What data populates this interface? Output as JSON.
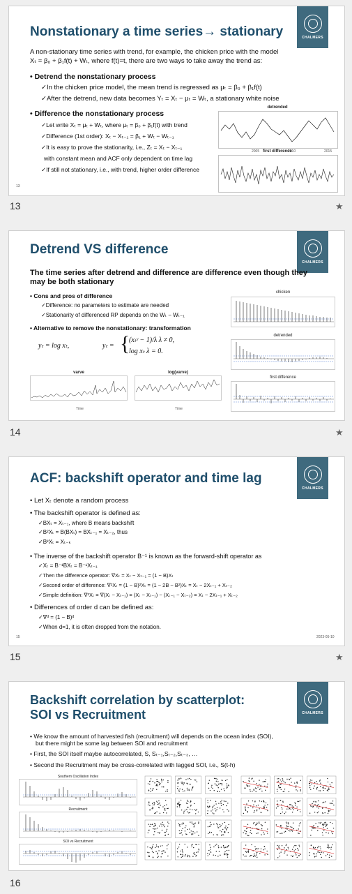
{
  "slides": [
    {
      "number": "13",
      "logo_text": "CHALMERS",
      "title": "Nonstationary a time series→ stationary",
      "intro_line1": "A non-stationary time series with trend, for example, the chicken price with the model",
      "intro_line2": "Xₜ = β₀ + β₁f(t) + Wₜ, where f(t)=t, there are two ways to take away the trend as:",
      "bullet1": "• Detrend the nonstationary process",
      "b1_sub1": "✓In the chicken price model, the mean trend is regressed as μₜ = β₀ + β₁f(t)",
      "b1_sub2": "✓After the detrend, new data becomes Yₜ = Xₜ − μₜ = Wₜ, a stationary white noise",
      "bullet2": "• Difference the nonstationary process",
      "b2_sub1": "✓Let write Xₜ = μₜ + Wₜ, where μₜ = β₀ + β₁f(t) with trend",
      "b2_sub2": "✓Difference (1st order): Xₜ − Xₜ₋₁ = β₁ + Wₜ − Wₜ₋₁",
      "b2_sub3": "✓It is easy to prove the stationarity, i.e., Zₜ = Xₜ − Xₜ₋₁",
      "b2_sub4": "with constant mean and ACF only dependent on time lag",
      "b2_sub5": "✓If still not stationary, i.e., with trend, higher order difference",
      "footer_num": "13",
      "fig_top_title": "detrended",
      "fig_bottom_title": "first difference",
      "fig_xticks": [
        "2005",
        "2010",
        "2015"
      ]
    },
    {
      "number": "14",
      "logo_text": "CHALMERS",
      "title": "Detrend VS difference",
      "subtitle": "The time series after detrend and difference are difference even though they may be both stationary",
      "bullet1": "• Cons and pros of difference",
      "b1_sub1": "✓Difference: no parameters to estimate are needed",
      "b1_sub2": "✓Stationarity of differenced RP depends on the Wₜ − Wₜ₋₁",
      "bullet2": "• Alternative to remove the nonstationary: transformation",
      "formula_log": "yₜ = log xₜ,",
      "formula_bc_lhs": "yₜ =",
      "formula_bc_case1": "(xₜᵞ − 1)/λ    λ ≠ 0,",
      "formula_bc_case2": "log xₜ            λ = 0.",
      "plot_left_title": "varve",
      "plot_right_title": "log(varve)",
      "acf_titles": [
        "chicken",
        "detrended",
        "first difference"
      ],
      "time_label": "Time",
      "xticks": [
        "0",
        "100",
        "200",
        "300",
        "400",
        "500",
        "600"
      ]
    },
    {
      "number": "15",
      "logo_text": "CHALMERS",
      "title": "ACF: backshift operator and time lag",
      "lines": [
        "• Let Xₜ denote a random process",
        "• The backshift operator is defined as:",
        "✓BXₜ = Xₜ₋₁, where B means backshift",
        "✓B²Xₜ = B(BXₜ) = BXₜ₋₁ = Xₜ₋₂, thus",
        "✓BᵏXₜ = Xₜ₋ₖ",
        "• The inverse of the backshift operator B⁻¹ is known as the forward-shift operator as",
        "✓Xₜ = B⁻¹BXₜ = B⁻¹Xₜ₋₁",
        "✓Then the difference operator: ∇Xₜ = Xₜ − Xₜ₋₁ = (1 − B)Xₜ",
        "✓Second order of difference:    ∇²Xₜ = (1 − B)²Xₜ = (1 − 2B − B²)Xₜ = Xₜ − 2Xₜ₋₁ + Xₜ₋₂",
        "✓Simple definition: ∇²Xₜ = ∇(Xₜ − Xₜ₋₁) = (Xₜ − Xₜ₋₁) − (Xₜ₋₁ − Xₜ₋₂) = Xₜ − 2Xₜ₋₁ + Xₜ₋₂",
        "• Differences of order d can be defined as:",
        "✓∇ᵈ = (1 − B)ᵈ",
        "✓When d=1, it is often dropped from the notation."
      ],
      "footer_num": "15",
      "footer_date": "2023-05-10"
    },
    {
      "number": "16",
      "logo_text": "CHALMERS",
      "title_line1": "Backshift correlation by scatterplot:",
      "title_line2": "SOI vs Recruitment",
      "bullet1_line1": "• We know the amount of harvested fish (recruitment) will depends on the ocean index (SOI),",
      "bullet1_line2": "but there might be some lag between SOI and recruitment",
      "bullet2": "• First, the SOI itself maybe autocorrelated, S,  Sₜ₋₁,Sₜ₋₂,Sₜ₋₃, …",
      "bullet3": "• Second the Recruitment may be cross-correlated with lagged SOI, i.e., S(t-h)",
      "acf_titles": [
        "Southern Oscillation Index",
        "Recruitment",
        "SOI vs Recruitment"
      ]
    }
  ],
  "star": "★"
}
